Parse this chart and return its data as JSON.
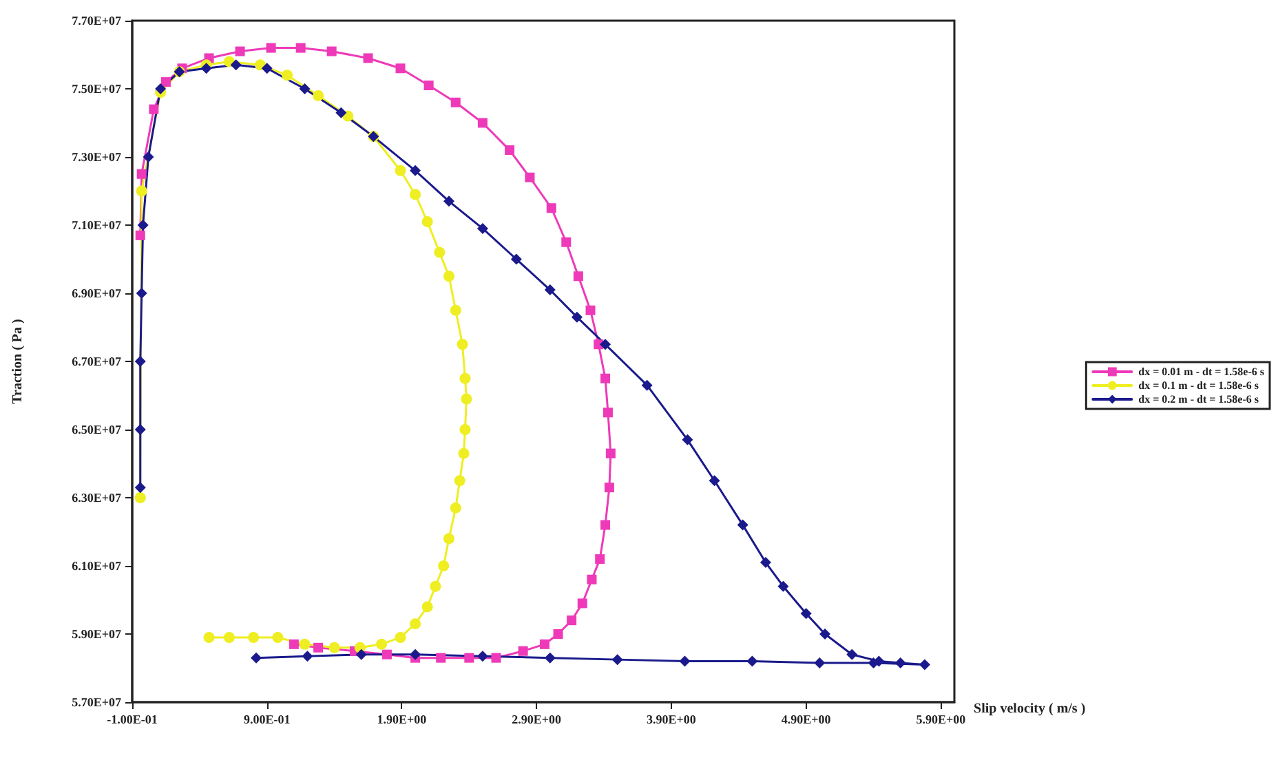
{
  "chart_data": {
    "type": "line",
    "xlabel": "Slip velocity ( m/s )",
    "ylabel": "Traction ( Pa )",
    "xlim": [
      -0.1,
      6.0
    ],
    "xticks": [
      {
        "value": -0.1,
        "label": "-1.00E-01"
      },
      {
        "value": 0.9,
        "label": "9.00E-01"
      },
      {
        "value": 1.9,
        "label": "1.90E+00"
      },
      {
        "value": 2.9,
        "label": "2.90E+00"
      },
      {
        "value": 3.9,
        "label": "3.90E+00"
      },
      {
        "value": 4.9,
        "label": "4.90E+00"
      },
      {
        "value": 5.9,
        "label": "5.90E+00"
      }
    ],
    "ylim": [
      57000000,
      77000000
    ],
    "yticks": [
      {
        "value": 57000000,
        "label": "5.70E+07"
      },
      {
        "value": 59000000,
        "label": "5.90E+07"
      },
      {
        "value": 61000000,
        "label": "6.10E+07"
      },
      {
        "value": 63000000,
        "label": "6.30E+07"
      },
      {
        "value": 65000000,
        "label": "6.50E+07"
      },
      {
        "value": 67000000,
        "label": "6.70E+07"
      },
      {
        "value": 69000000,
        "label": "6.90E+07"
      },
      {
        "value": 71000000,
        "label": "7.10E+07"
      },
      {
        "value": 73000000,
        "label": "7.30E+07"
      },
      {
        "value": 75000000,
        "label": "7.50E+07"
      },
      {
        "value": 77000000,
        "label": "7.70E+07"
      }
    ],
    "grid": false,
    "legend": "right",
    "line_style": "solid",
    "series": [
      {
        "name": "dx = 0.01 m - dt = 1.58e-6 s",
        "color": "#ee3ab8",
        "marker": "square",
        "x": [
          -0.04,
          -0.03,
          0.06,
          0.15,
          0.27,
          0.47,
          0.7,
          0.93,
          1.15,
          1.38,
          1.65,
          1.89,
          2.1,
          2.3,
          2.5,
          2.7,
          2.85,
          3.01,
          3.12,
          3.21,
          3.3,
          3.36,
          3.41,
          3.43,
          3.45,
          3.44,
          3.41,
          3.37,
          3.31,
          3.24,
          3.16,
          3.06,
          2.96,
          2.8,
          2.6,
          2.4,
          2.19,
          2.0,
          1.79,
          1.55,
          1.28,
          1.1
        ],
        "values": [
          70700000,
          72500000,
          74400000,
          75200000,
          75600000,
          75900000,
          76100000,
          76200000,
          76200000,
          76100000,
          75900000,
          75600000,
          75100000,
          74600000,
          74000000,
          73200000,
          72400000,
          71500000,
          70500000,
          69500000,
          68500000,
          67500000,
          66500000,
          65500000,
          64300000,
          63300000,
          62200000,
          61200000,
          60600000,
          59900000,
          59400000,
          59000000,
          58700000,
          58500000,
          58300000,
          58300000,
          58300000,
          58300000,
          58400000,
          58500000,
          58600000,
          58700000
        ]
      },
      {
        "name": "dx = 0.1 m - dt = 1.58e-6 s",
        "color": "#eeee22",
        "marker": "circle",
        "x": [
          -0.04,
          -0.03,
          0.11,
          0.25,
          0.45,
          0.62,
          0.85,
          1.05,
          1.28,
          1.5,
          1.69,
          1.89,
          2.0,
          2.09,
          2.18,
          2.25,
          2.3,
          2.35,
          2.37,
          2.38,
          2.37,
          2.36,
          2.33,
          2.3,
          2.25,
          2.21,
          2.15,
          2.09,
          2.0,
          1.89,
          1.75,
          1.59,
          1.4,
          1.18,
          0.98,
          0.8,
          0.62,
          0.47
        ],
        "values": [
          63000000,
          72000000,
          74900000,
          75500000,
          75700000,
          75800000,
          75700000,
          75400000,
          74800000,
          74200000,
          73600000,
          72600000,
          71900000,
          71100000,
          70200000,
          69500000,
          68500000,
          67500000,
          66500000,
          65900000,
          65000000,
          64300000,
          63500000,
          62700000,
          61800000,
          61000000,
          60400000,
          59800000,
          59300000,
          58900000,
          58700000,
          58600000,
          58600000,
          58700000,
          58900000,
          58900000,
          58900000,
          58900000
        ]
      },
      {
        "name": "dx = 0.2 m - dt = 1.58e-6 s",
        "color": "#1a1a8c",
        "marker": "diamond",
        "x": [
          -0.04,
          -0.04,
          -0.04,
          -0.03,
          -0.02,
          0.02,
          0.11,
          0.25,
          0.45,
          0.67,
          0.9,
          1.18,
          1.45,
          1.69,
          2.0,
          2.25,
          2.5,
          2.75,
          3.0,
          3.2,
          3.41,
          3.72,
          4.02,
          4.22,
          4.43,
          4.6,
          4.73,
          4.9,
          5.04,
          5.24,
          5.44,
          5.6,
          5.78,
          5.4,
          5.0,
          4.5,
          4.0,
          3.5,
          3.0,
          2.5,
          2.0,
          1.6,
          1.2,
          0.82
        ],
        "values": [
          63300000,
          65000000,
          67000000,
          69000000,
          71000000,
          73000000,
          75000000,
          75500000,
          75600000,
          75700000,
          75600000,
          75000000,
          74300000,
          73600000,
          72600000,
          71700000,
          70900000,
          70000000,
          69100000,
          68300000,
          67500000,
          66300000,
          64700000,
          63500000,
          62200000,
          61100000,
          60400000,
          59600000,
          59000000,
          58400000,
          58200000,
          58150000,
          58100000,
          58150000,
          58150000,
          58200000,
          58200000,
          58250000,
          58300000,
          58350000,
          58400000,
          58400000,
          58350000,
          58300000
        ]
      }
    ]
  }
}
